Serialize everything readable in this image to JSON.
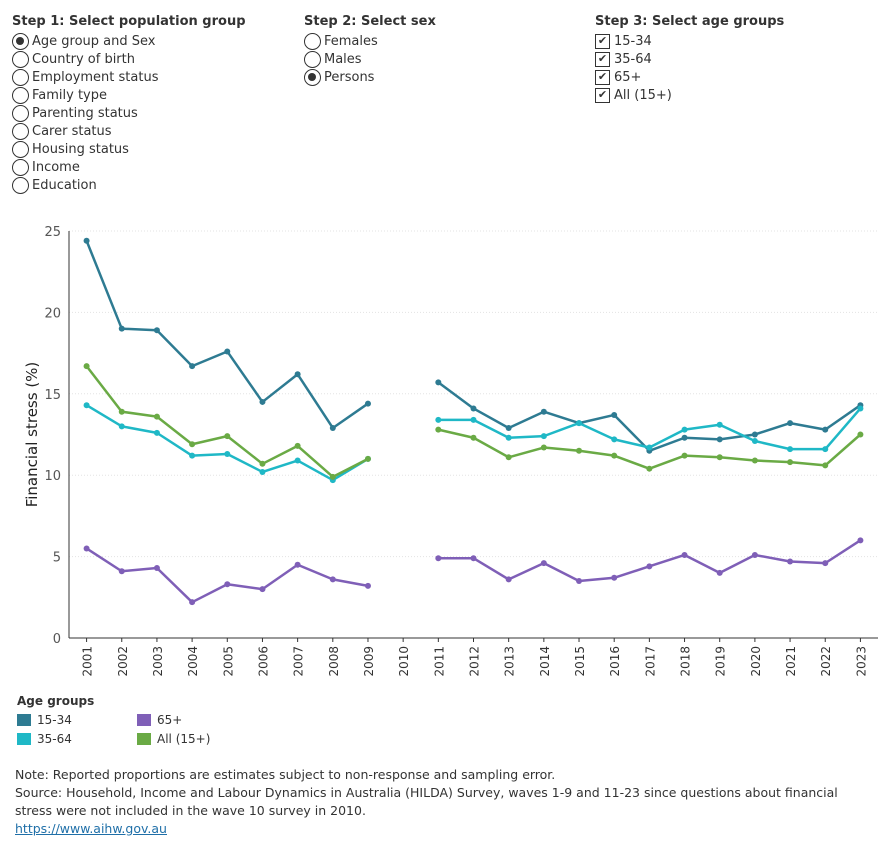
{
  "step1": {
    "title": "Step 1: Select population group",
    "options": [
      "Age group and Sex",
      "Country of birth",
      "Employment status",
      "Family type",
      "Parenting status",
      "Carer status",
      "Housing status",
      "Income",
      "Education"
    ],
    "selected": "Age group and Sex"
  },
  "step2": {
    "title": "Step 2: Select sex",
    "options": [
      "Females",
      "Males",
      "Persons"
    ],
    "selected": "Persons"
  },
  "step3": {
    "title": "Step 3: Select age groups",
    "options": [
      "15-34",
      "35-64",
      "65+",
      "All (15+)"
    ],
    "checked": [
      true,
      true,
      true,
      true
    ],
    "check_mark": "✔"
  },
  "chart_data": {
    "type": "line",
    "ylabel": "Financial stress (%)",
    "xlabel": "",
    "ylim": [
      0,
      25
    ],
    "yticks": [
      0,
      5,
      10,
      15,
      20,
      25
    ],
    "categories": [
      "2001",
      "2002",
      "2003",
      "2004",
      "2005",
      "2006",
      "2007",
      "2008",
      "2009",
      "2010",
      "2011",
      "2012",
      "2013",
      "2014",
      "2015",
      "2016",
      "2017",
      "2018",
      "2019",
      "2020",
      "2021",
      "2022",
      "2023"
    ],
    "grid": "horizontal dotted",
    "series": [
      {
        "name": "15-34",
        "color": "#2e7b92",
        "values": [
          24.4,
          19.0,
          18.9,
          16.7,
          17.6,
          14.5,
          16.2,
          12.9,
          14.4,
          null,
          15.7,
          14.1,
          12.9,
          13.9,
          13.2,
          13.7,
          11.5,
          12.3,
          12.2,
          12.5,
          13.2,
          12.8,
          14.3
        ]
      },
      {
        "name": "35-64",
        "color": "#1fb8c6",
        "values": [
          14.3,
          13.0,
          12.6,
          11.2,
          11.3,
          10.2,
          10.9,
          9.7,
          11.0,
          null,
          13.4,
          13.4,
          12.3,
          12.4,
          13.2,
          12.2,
          11.7,
          12.8,
          13.1,
          12.1,
          11.6,
          11.6,
          14.1
        ]
      },
      {
        "name": "65+",
        "color": "#7f5fb7",
        "values": [
          5.5,
          4.1,
          4.3,
          2.2,
          3.3,
          3.0,
          4.5,
          3.6,
          3.2,
          null,
          4.9,
          4.9,
          3.6,
          4.6,
          3.5,
          3.7,
          4.4,
          5.1,
          4.0,
          5.1,
          4.7,
          4.6,
          6.0
        ]
      },
      {
        "name": "All (15+)",
        "color": "#6aaa45",
        "values": [
          16.7,
          13.9,
          13.6,
          11.9,
          12.4,
          10.7,
          11.8,
          9.9,
          11.0,
          null,
          12.8,
          12.3,
          11.1,
          11.7,
          11.5,
          11.2,
          10.4,
          11.2,
          11.1,
          10.9,
          10.8,
          10.6,
          12.5
        ]
      }
    ],
    "legend_position": "bottom-left"
  },
  "legend": {
    "title": "Age groups",
    "items": [
      {
        "label": "15-34",
        "color": "#2e7b92"
      },
      {
        "label": "65+",
        "color": "#7f5fb7"
      },
      {
        "label": "35-64",
        "color": "#1fb8c6"
      },
      {
        "label": "All (15+)",
        "color": "#6aaa45"
      }
    ]
  },
  "notes": {
    "note": "Note: Reported proportions are estimates subject to non-response and sampling error.",
    "source": "Source: Household, Income and Labour Dynamics in Australia (HILDA) Survey, waves 1-9 and 11-23 since questions about financial stress were not included in the wave 10 survey in 2010.",
    "link": "https://www.aihw.gov.au"
  }
}
